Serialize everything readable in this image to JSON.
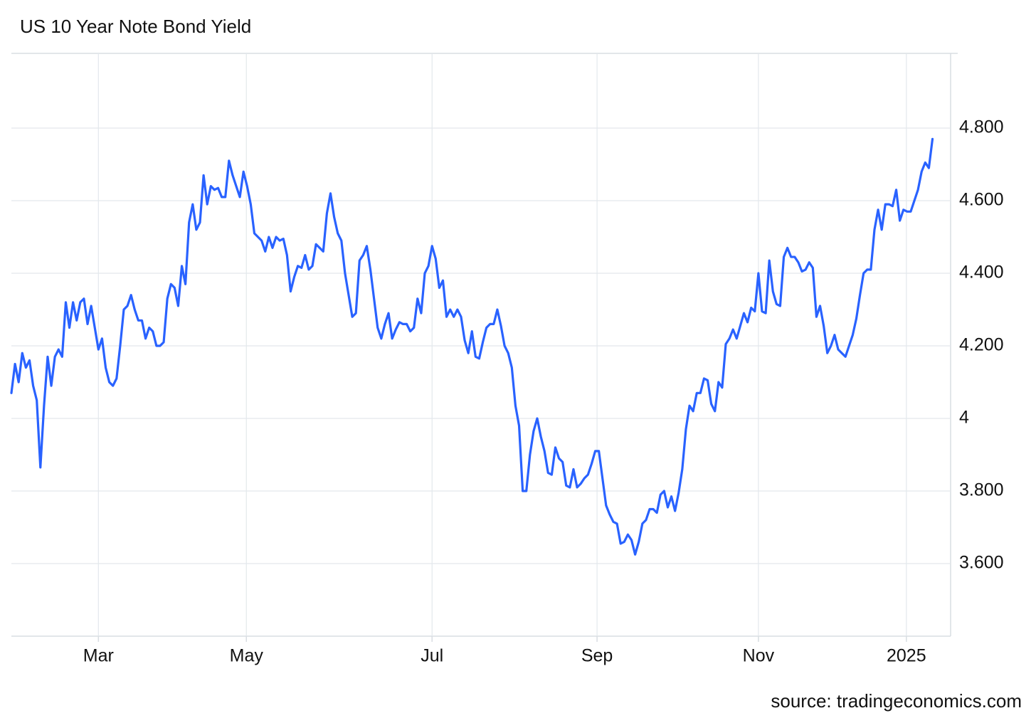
{
  "chart_data": {
    "type": "line",
    "title": "US 10 Year Note Bond Yield",
    "source": "source: tradingeconomics.com",
    "color": "#2962ff",
    "grid": true,
    "ylim": [
      3.4,
      5.0
    ],
    "yticks": [
      {
        "value": 3.6,
        "label": "3.600"
      },
      {
        "value": 3.8,
        "label": "3.800"
      },
      4,
      {
        "value": 4.2,
        "label": "4.200"
      },
      {
        "value": 4.4,
        "label": "4.400"
      },
      {
        "value": 4.6,
        "label": "4.600"
      },
      {
        "value": 4.8,
        "label": "4.800"
      }
    ],
    "xlim": [
      0,
      259
    ],
    "xticks": [
      {
        "value": 24,
        "label": "Mar"
      },
      {
        "value": 64.8,
        "label": "May"
      },
      {
        "value": 116,
        "label": "Jul"
      },
      {
        "value": 161.5,
        "label": "Sep"
      },
      {
        "value": 206,
        "label": "Nov"
      },
      {
        "value": 246.8,
        "label": "2025"
      }
    ],
    "values": [
      4.07,
      4.15,
      4.1,
      4.18,
      4.14,
      4.16,
      4.09,
      4.05,
      3.865,
      4.035,
      4.17,
      4.09,
      4.17,
      4.19,
      4.17,
      4.32,
      4.25,
      4.32,
      4.27,
      4.32,
      4.33,
      4.26,
      4.31,
      4.25,
      4.19,
      4.22,
      4.14,
      4.1,
      4.09,
      4.11,
      4.2,
      4.3,
      4.31,
      4.34,
      4.3,
      4.27,
      4.27,
      4.22,
      4.25,
      4.24,
      4.2,
      4.2,
      4.21,
      4.33,
      4.37,
      4.36,
      4.31,
      4.42,
      4.37,
      4.54,
      4.59,
      4.52,
      4.54,
      4.67,
      4.59,
      4.64,
      4.63,
      4.635,
      4.61,
      4.61,
      4.71,
      4.67,
      4.64,
      4.61,
      4.68,
      4.64,
      4.59,
      4.51,
      4.5,
      4.49,
      4.46,
      4.5,
      4.47,
      4.5,
      4.49,
      4.495,
      4.45,
      4.35,
      4.39,
      4.42,
      4.415,
      4.45,
      4.41,
      4.42,
      4.48,
      4.47,
      4.46,
      4.565,
      4.62,
      4.555,
      4.51,
      4.49,
      4.4,
      4.34,
      4.28,
      4.29,
      4.435,
      4.45,
      4.475,
      4.41,
      4.33,
      4.25,
      4.22,
      4.26,
      4.29,
      4.22,
      4.245,
      4.265,
      4.26,
      4.26,
      4.24,
      4.25,
      4.33,
      4.29,
      4.4,
      4.42,
      4.475,
      4.44,
      4.36,
      4.38,
      4.28,
      4.3,
      4.28,
      4.3,
      4.28,
      4.215,
      4.18,
      4.24,
      4.17,
      4.165,
      4.21,
      4.25,
      4.26,
      4.26,
      4.3,
      4.255,
      4.2,
      4.18,
      4.14,
      4.035,
      3.98,
      3.8,
      3.8,
      3.9,
      3.965,
      4.0,
      3.95,
      3.91,
      3.85,
      3.845,
      3.92,
      3.89,
      3.88,
      3.815,
      3.81,
      3.86,
      3.81,
      3.82,
      3.835,
      3.845,
      3.875,
      3.91,
      3.91,
      3.835,
      3.76,
      3.735,
      3.715,
      3.71,
      3.655,
      3.66,
      3.68,
      3.665,
      3.625,
      3.66,
      3.71,
      3.72,
      3.75,
      3.75,
      3.74,
      3.79,
      3.8,
      3.755,
      3.785,
      3.745,
      3.795,
      3.86,
      3.97,
      4.035,
      4.02,
      4.07,
      4.07,
      4.11,
      4.105,
      4.04,
      4.02,
      4.1,
      4.085,
      4.205,
      4.22,
      4.245,
      4.22,
      4.255,
      4.29,
      4.265,
      4.305,
      4.295,
      4.4,
      4.295,
      4.29,
      4.435,
      4.35,
      4.315,
      4.31,
      4.445,
      4.47,
      4.445,
      4.445,
      4.43,
      4.405,
      4.41,
      4.43,
      4.415,
      4.28,
      4.31,
      4.255,
      4.18,
      4.2,
      4.23,
      4.19,
      4.18,
      4.17,
      4.2,
      4.23,
      4.275,
      4.34,
      4.4,
      4.41,
      4.41,
      4.52,
      4.575,
      4.52,
      4.59,
      4.59,
      4.585,
      4.63,
      4.545,
      4.575,
      4.57,
      4.57,
      4.6,
      4.63,
      4.68,
      4.705,
      4.69,
      4.77
    ]
  }
}
